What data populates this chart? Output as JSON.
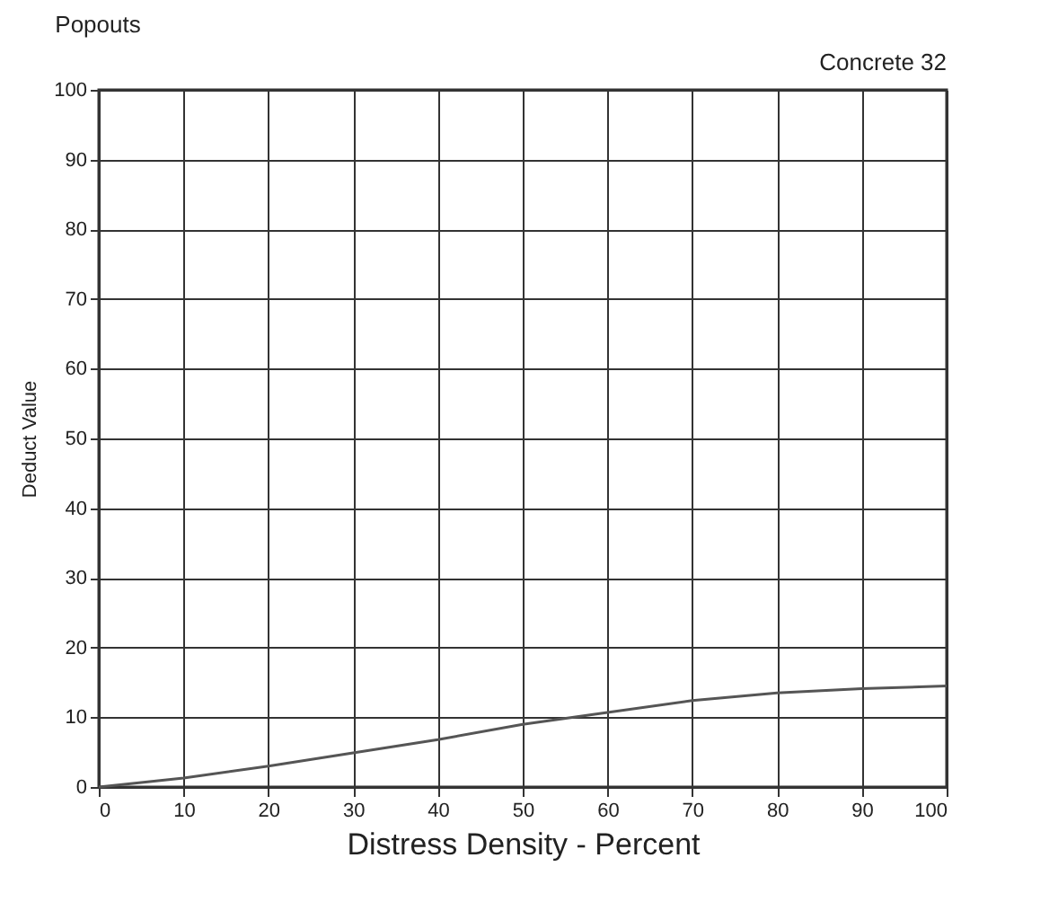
{
  "chart_data": {
    "type": "line",
    "title": "Popouts",
    "annotations": [
      "Concrete 32"
    ],
    "xlabel": "Distress Density - Percent",
    "ylabel": "Deduct Value",
    "x": [
      0,
      10,
      20,
      30,
      40,
      50,
      60,
      70,
      80,
      90,
      100
    ],
    "series": [
      {
        "color": "#555555",
        "values": [
          0,
          1.3,
          3,
          4.9,
          6.8,
          9,
          10.7,
          12.4,
          13.5,
          14.1,
          14.5
        ]
      }
    ],
    "xlim": [
      0,
      100
    ],
    "xticks": [
      0,
      10,
      20,
      30,
      40,
      50,
      60,
      70,
      80,
      90,
      100
    ],
    "ylim": [
      0,
      100
    ],
    "yticks": [
      0,
      10,
      20,
      30,
      40,
      50,
      60,
      70,
      80,
      90,
      100
    ],
    "grid": true,
    "marker": "none",
    "line_style": "solid"
  }
}
